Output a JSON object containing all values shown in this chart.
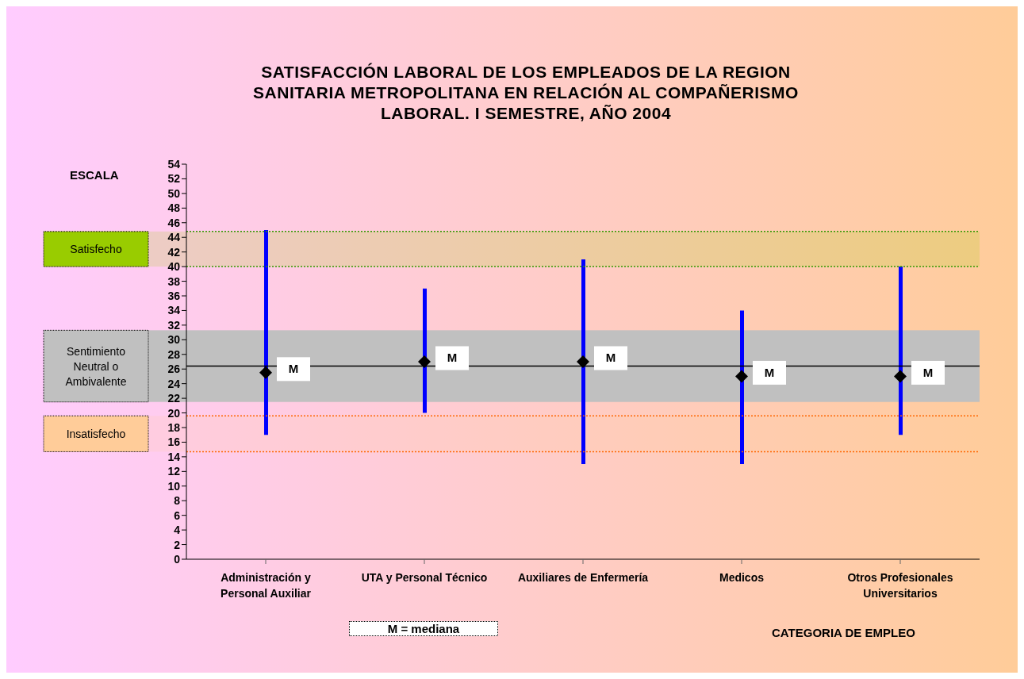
{
  "chart_data": {
    "type": "bar",
    "title": "SATISFACCIÓN LABORAL DE LOS EMPLEADOS DE LA REGION SANITARIA METROPOLITANA EN RELACIÓN AL COMPAÑERISMO LABORAL. I SEMESTRE, AÑO 2004",
    "xlabel": "CATEGORIA DE EMPLEO",
    "ylabel": "ESCALA",
    "categories": [
      "Administración y Personal Auxiliar",
      "UTA y Personal Técnico",
      "Auxiliares de Enfermería",
      "Medicos",
      "Otros Profesionales Universitarios"
    ],
    "series": [
      {
        "color": "#0000ff",
        "base": [
          17,
          20,
          13,
          13,
          17
        ],
        "values": [
          28,
          17,
          28,
          21,
          23
        ]
      },
      {
        "type": "scatter",
        "color": "#000000",
        "marker": "diamond",
        "values": [
          25.5,
          27,
          27,
          25,
          25
        ],
        "value_labels": [
          "M",
          "M",
          "M",
          "M",
          "M"
        ]
      }
    ],
    "ylim": [
      0,
      54
    ],
    "yticks": [
      0,
      2,
      4,
      6,
      8,
      10,
      12,
      14,
      16,
      18,
      20,
      22,
      24,
      26,
      28,
      30,
      32,
      34,
      36,
      38,
      40,
      42,
      44,
      46,
      48,
      50,
      52,
      54
    ],
    "ref_lines": [
      {
        "axis": "y",
        "value": 44.8,
        "color": "#339900",
        "line_style": "dotted"
      },
      {
        "axis": "y",
        "value": 40,
        "color": "#339900",
        "line_style": "dotted"
      },
      {
        "axis": "y",
        "value": 26.4,
        "color": "#000000",
        "line_style": "solid"
      },
      {
        "axis": "y",
        "value": 19.6,
        "color": "#ff6600",
        "line_style": "dotted"
      },
      {
        "axis": "y",
        "value": 14.7,
        "color": "#ff6600",
        "line_style": "dotted"
      }
    ],
    "bands": [
      {
        "axis": "y",
        "from": 40,
        "to": 44.8,
        "label": "Satisfecho",
        "color": "#99cc00"
      },
      {
        "axis": "y",
        "from": 21.5,
        "to": 31.3,
        "label": "Sentimiento Neutral o Ambivalente",
        "color": "#c0c0c0"
      },
      {
        "axis": "y",
        "from": 14.7,
        "to": 19.6,
        "label": "Insatisfecho",
        "color": "#ffcc99"
      }
    ],
    "annotations": [
      "M = mediana"
    ],
    "grid": false,
    "legend": false
  }
}
